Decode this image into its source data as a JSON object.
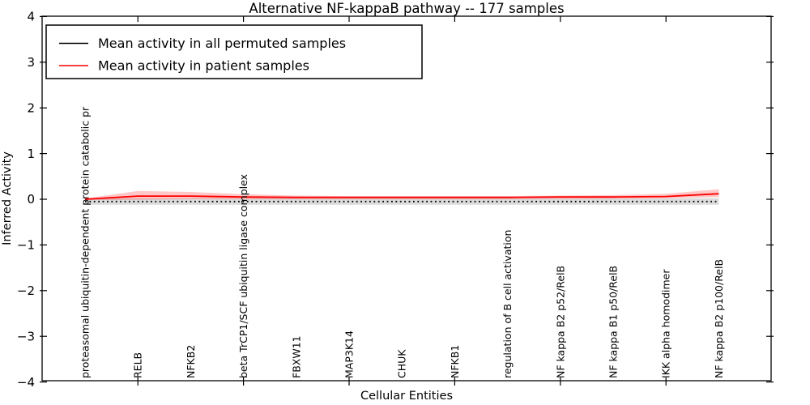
{
  "title": "Alternative NF-kappaB pathway -- 177 samples",
  "chart_data": {
    "type": "line",
    "title": "Alternative NF-kappaB pathway -- 177 samples",
    "xlabel": "Cellular Entities",
    "ylabel": "Inferred Activity",
    "ylim": [
      -4,
      4
    ],
    "yticks": [
      4,
      3,
      2,
      1,
      0,
      -1,
      -2,
      -3,
      -4
    ],
    "xtick_positions": [
      1,
      3,
      5,
      7,
      9,
      11
    ],
    "grid": false,
    "legend_position": "upper left",
    "categories": [
      "proteasomal ubiquitin-dependent protein catabolic pr",
      "RELB",
      "NFKB2",
      "beta TrCP1/SCF ubiquitin ligase complex",
      "FBXW11",
      "MAP3K14",
      "CHUK",
      "NFKB1",
      "regulation of B cell activation",
      "NF kappa B2 p52/RelB",
      "NF kappa B1 p50/RelB",
      "IKK alpha homodimer",
      "NF kappa B2 p100/RelB"
    ],
    "series": [
      {
        "name": "Mean activity in all permuted samples",
        "color": "#000000",
        "line_style": "dotted",
        "values": [
          -0.05,
          -0.05,
          -0.05,
          -0.05,
          -0.05,
          -0.05,
          -0.05,
          -0.05,
          -0.05,
          -0.05,
          -0.05,
          -0.05,
          -0.05
        ],
        "band_upper": [
          0.02,
          0.02,
          0.02,
          0.02,
          0.02,
          0.02,
          0.02,
          0.02,
          0.02,
          0.02,
          0.02,
          0.02,
          0.02
        ],
        "band_lower": [
          -0.12,
          -0.12,
          -0.12,
          -0.12,
          -0.12,
          -0.12,
          -0.12,
          -0.12,
          -0.12,
          -0.12,
          -0.12,
          -0.12,
          -0.12
        ],
        "band_color": "#999999",
        "band_opacity": 0.35
      },
      {
        "name": "Mean activity in patient samples",
        "color": "#ff0000",
        "line_style": "solid",
        "values": [
          0.0,
          0.07,
          0.07,
          0.05,
          0.04,
          0.04,
          0.04,
          0.04,
          0.04,
          0.05,
          0.05,
          0.06,
          0.12
        ],
        "band_upper": [
          0.02,
          0.18,
          0.16,
          0.11,
          0.08,
          0.07,
          0.07,
          0.07,
          0.07,
          0.08,
          0.09,
          0.12,
          0.22
        ],
        "band_lower": [
          -0.02,
          -0.01,
          0.0,
          0.0,
          0.0,
          0.0,
          0.0,
          0.0,
          0.0,
          0.01,
          0.01,
          0.02,
          0.05
        ],
        "band_color": "#ff0000",
        "band_opacity": 0.22
      }
    ]
  },
  "legend": {
    "items": [
      {
        "label": "Mean activity in all permuted samples",
        "color": "#000000"
      },
      {
        "label": "Mean activity in patient samples",
        "color": "#ff0000"
      }
    ]
  }
}
